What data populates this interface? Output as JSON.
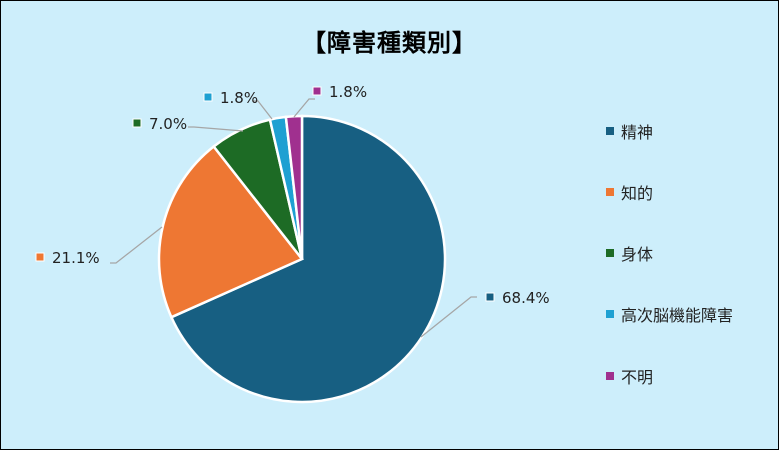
{
  "chart_data": {
    "type": "pie",
    "title": "【障害種類別】",
    "categories": [
      "精神",
      "知的",
      "身体",
      "高次脳機能障害",
      "不明"
    ],
    "values": [
      68.4,
      21.1,
      7.0,
      1.8,
      1.8
    ],
    "data_labels": [
      "68.4%",
      "21.1%",
      "7.0%",
      "1.8%",
      "1.8%"
    ],
    "colors": [
      "#175f82",
      "#ee7733",
      "#1d6b25",
      "#1ea0d2",
      "#a0308f"
    ],
    "start_angle_deg": 0,
    "direction": "clockwise",
    "legend_position": "right"
  }
}
